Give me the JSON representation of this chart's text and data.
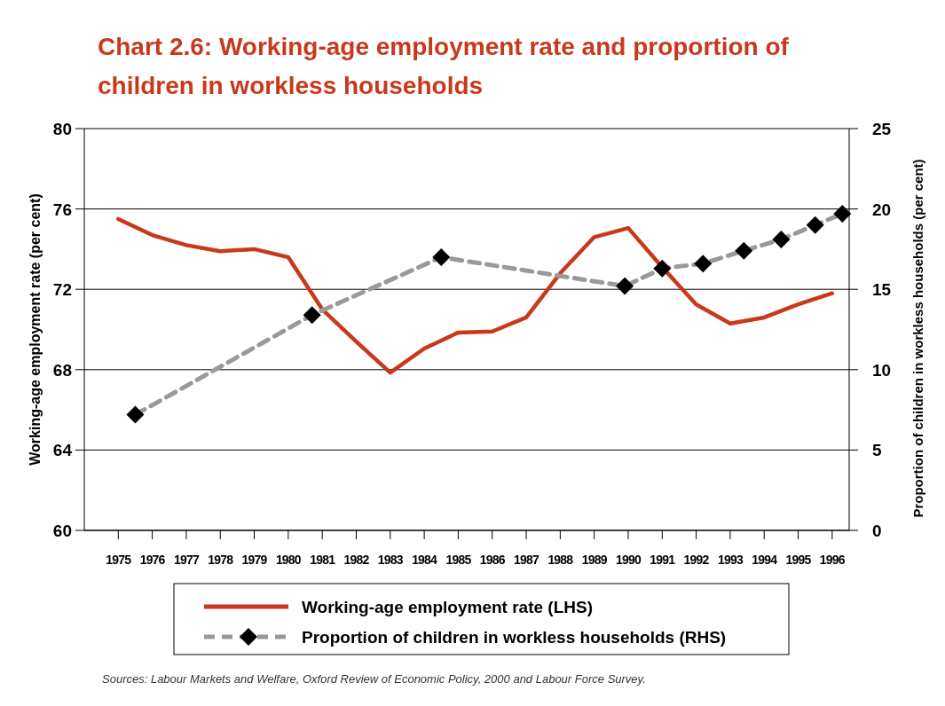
{
  "chart_data": {
    "type": "line",
    "title": "Chart 2.6: Working-age employment rate and proportion of children in workless households",
    "x": [
      1975,
      1976,
      1977,
      1978,
      1979,
      1980,
      1981,
      1982,
      1983,
      1984,
      1985,
      1986,
      1987,
      1988,
      1989,
      1990,
      1991,
      1992,
      1993,
      1994,
      1995,
      1996
    ],
    "series": [
      {
        "name": "Working-age employment rate (LHS)",
        "color": "#c8391b",
        "values": [
          75.5,
          74.7,
          74.2,
          73.9,
          74.0,
          73.6,
          71.0,
          69.4,
          67.85,
          69.05,
          69.85,
          69.9,
          70.6,
          72.8,
          74.6,
          75.05,
          73.1,
          71.25,
          70.3,
          70.6,
          71.25,
          71.8
        ],
        "marker": "none",
        "line_style": "solid"
      },
      {
        "name": "Proportion of children in workless households (RHS)",
        "color": "#999999",
        "axis": "y2",
        "x": [
          1975.5,
          1980.7,
          1984.5,
          1989.9,
          1991.0,
          1992.2,
          1993.4,
          1994.5,
          1995.5,
          1996.3
        ],
        "values": [
          7.2,
          13.4,
          17.0,
          15.2,
          16.3,
          16.6,
          17.4,
          18.1,
          19.0,
          19.7
        ],
        "marker": "diamond",
        "line_style": "dashed"
      }
    ],
    "xlim": [
      1974,
      1996.5
    ],
    "xticks": [
      1975,
      1976,
      1977,
      1978,
      1979,
      1980,
      1981,
      1982,
      1983,
      1984,
      1985,
      1986,
      1987,
      1988,
      1989,
      1990,
      1991,
      1992,
      1993,
      1994,
      1995,
      1996
    ],
    "ylim": [
      60,
      80
    ],
    "yticks": [
      60,
      64,
      68,
      72,
      76,
      80
    ],
    "y2lim": [
      0,
      25
    ],
    "y2ticks": [
      0,
      5,
      10,
      15,
      20,
      25
    ],
    "ylabel": "Working-age employment rate (per cent)",
    "y2label": "Proportion of children in workless households  (per cent)",
    "grid": "y",
    "legend": "bottom",
    "annotations": [
      "Sources: Labour Markets and Welfare, Oxford Review of Economic Policy, 2000 and Labour Force Survey."
    ]
  }
}
